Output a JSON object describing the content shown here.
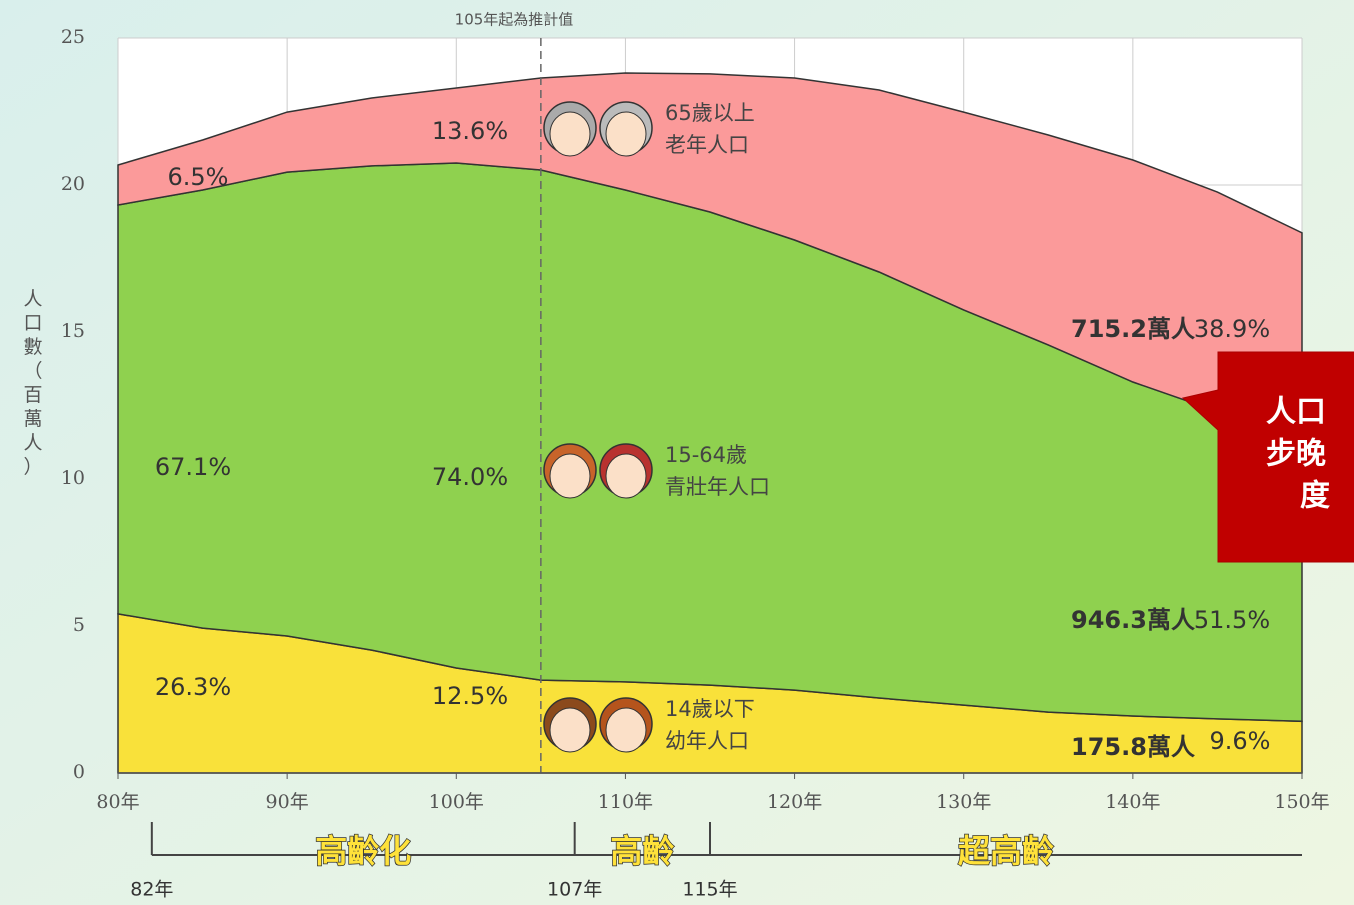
{
  "chart_data": {
    "type": "stacked-area",
    "projection_note": "105年起為推計值",
    "projection_x": 105,
    "y_label": "人口數（百萬人）",
    "x": [
      80,
      85,
      90,
      95,
      100,
      105,
      110,
      115,
      120,
      125,
      130,
      135,
      140,
      145,
      150
    ],
    "series": [
      {
        "name": "幼年人口",
        "age": "14歲以下",
        "color": "#f9e13a",
        "values": [
          5.41,
          4.93,
          4.66,
          4.18,
          3.57,
          3.16,
          3.1,
          2.99,
          2.82,
          2.55,
          2.31,
          2.07,
          1.94,
          1.84,
          1.758
        ]
      },
      {
        "name": "青壯年人口",
        "age": "15-64歲",
        "color": "#8fd14f",
        "values": [
          13.91,
          14.9,
          15.78,
          16.47,
          17.18,
          17.35,
          16.73,
          16.09,
          15.31,
          14.49,
          13.44,
          12.49,
          11.36,
          10.46,
          9.463
        ]
      },
      {
        "name": "老年人口",
        "age": "65歲以上",
        "color": "#fb9a9a",
        "values": [
          1.36,
          1.7,
          2.04,
          2.31,
          2.55,
          3.13,
          3.98,
          4.7,
          5.51,
          6.19,
          6.73,
          7.14,
          7.55,
          7.46,
          7.152
        ]
      }
    ],
    "annotations": [
      "26.3%",
      "67.1%",
      "6.5%",
      "12.5%",
      "74.0%",
      "13.6%",
      "175.8萬人",
      "9.6%",
      "946.3萬人",
      "51.5%",
      "715.2萬人",
      "38.9%"
    ],
    "xlim": [
      80,
      150
    ],
    "ylim": [
      0,
      25
    ],
    "xticks": [
      {
        "value": 80,
        "label": "80年"
      },
      {
        "value": 90,
        "label": "90年"
      },
      {
        "value": 100,
        "label": "100年"
      },
      {
        "value": 110,
        "label": "110年"
      },
      {
        "value": 120,
        "label": "120年"
      },
      {
        "value": 130,
        "label": "130年"
      },
      {
        "value": 140,
        "label": "140年"
      },
      {
        "value": 150,
        "label": "150年"
      }
    ],
    "yticks": [
      0,
      5,
      10,
      15,
      20,
      25
    ],
    "grid": true,
    "stage_bounds": [
      {
        "value": 82,
        "label": "82年"
      },
      {
        "value": 107,
        "label": "107年"
      },
      {
        "value": 115,
        "label": "115年"
      }
    ],
    "stages": [
      "高齡化",
      "高齡",
      "超高齡"
    ],
    "callout": [
      "人口",
      "步晚",
      "度"
    ]
  }
}
